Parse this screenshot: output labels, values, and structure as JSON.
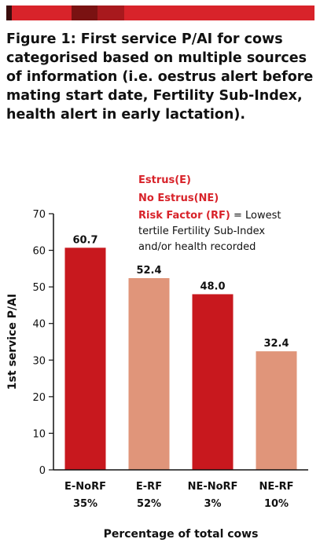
{
  "title": "Figure 1: First service P/AI for cows categorised based on multiple sources of information (i.e. oestrus alert before mating start date, Fertility Sub-Index, health alert in early lactation).",
  "colors": {
    "accent": "#d8232a",
    "dark": "#c8181e",
    "light": "#e0957a"
  },
  "legend": {
    "estrus": "Estrus(E)",
    "no_estrus": "No Estrus(NE)",
    "risk_factor": "Risk Factor (RF)",
    "risk_factor_desc": [
      " = Lowest",
      "tertile Fertility Sub-Index",
      "and/or health recorded"
    ]
  },
  "chart_data": {
    "type": "bar",
    "title": "",
    "xlabel": "Percentage of total cows",
    "ylabel": "1st service P/AI",
    "ylim": [
      0,
      70
    ],
    "yticks": [
      0,
      10,
      20,
      30,
      40,
      50,
      60,
      70
    ],
    "categories": [
      "E-NoRF",
      "E-RF",
      "NE-NoRF",
      "NE-RF"
    ],
    "category_percentages": [
      "35%",
      "52%",
      "3%",
      "10%"
    ],
    "values": [
      60.7,
      52.4,
      48.0,
      32.4
    ],
    "value_labels": [
      "60.7",
      "52.4",
      "48.0",
      "32.4"
    ],
    "bar_colors": [
      "#c8181e",
      "#e0957a",
      "#c8181e",
      "#e0957a"
    ],
    "grid": false
  }
}
